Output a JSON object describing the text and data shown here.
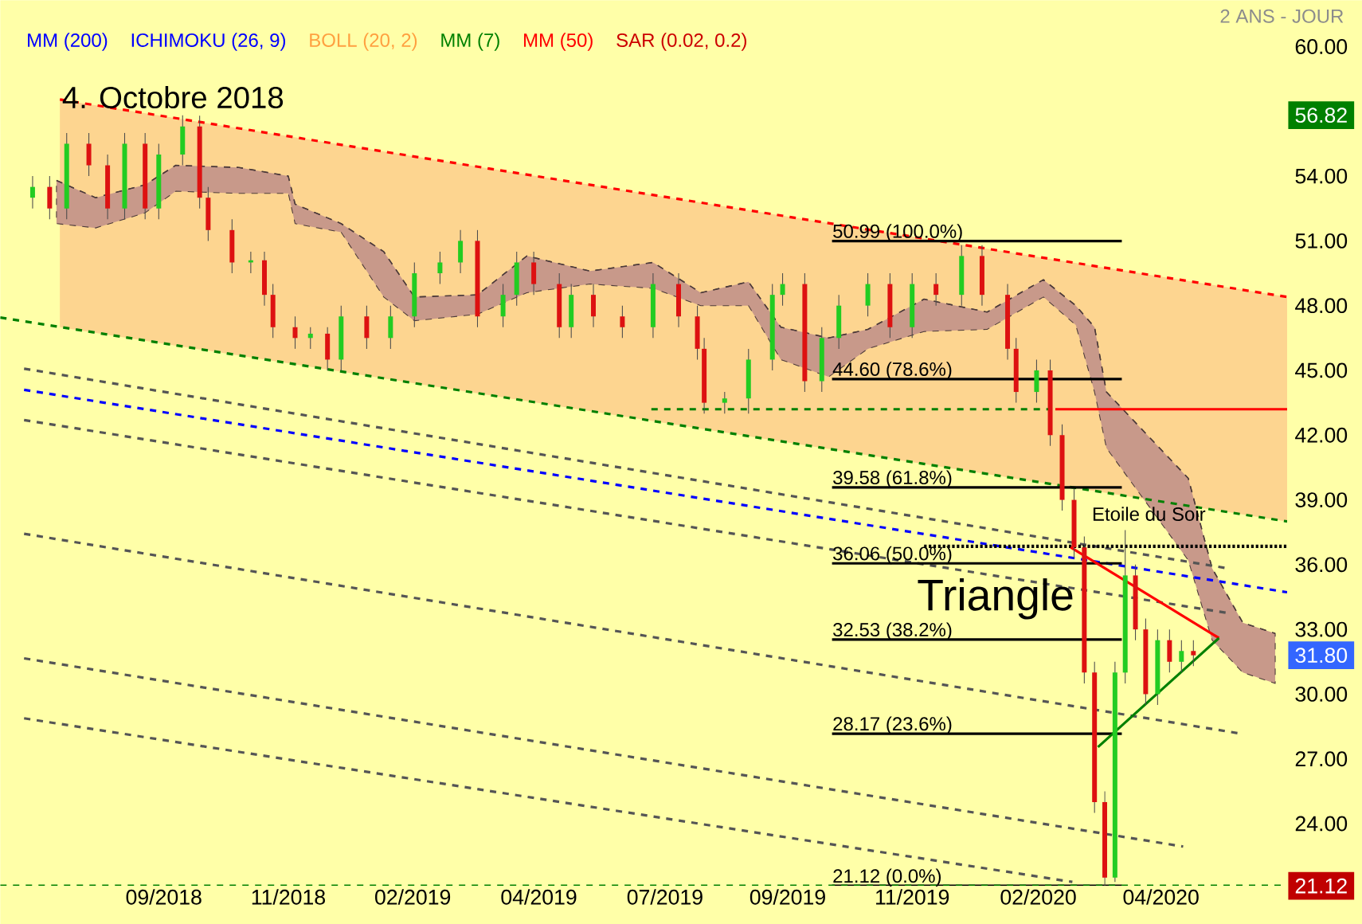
{
  "chart_data": {
    "type": "candlestick",
    "subtitle": "2 ANS - JOUR",
    "xlim": [
      "2018-06-06",
      "2020-06-30"
    ],
    "ylim": [
      21.12,
      62.15
    ],
    "xticks": [
      {
        "value": "2018-09-10",
        "label": "09/2018"
      },
      {
        "value": "2018-11-22",
        "label": "11/2018"
      },
      {
        "value": "2019-02-03",
        "label": "02/2019"
      },
      {
        "value": "2019-04-18",
        "label": "04/2019"
      },
      {
        "value": "2019-07-01",
        "label": "07/2019"
      },
      {
        "value": "2019-09-11",
        "label": "09/2019"
      },
      {
        "value": "2019-11-23",
        "label": "11/2019"
      },
      {
        "value": "2020-02-05",
        "label": "02/2020"
      },
      {
        "value": "2020-04-17",
        "label": "04/2020"
      }
    ],
    "yticks": [
      {
        "value": 24,
        "label": "24.00"
      },
      {
        "value": 27,
        "label": "27.00"
      },
      {
        "value": 30,
        "label": "30.00"
      },
      {
        "value": 33,
        "label": "33.00"
      },
      {
        "value": 36,
        "label": "36.00"
      },
      {
        "value": 39,
        "label": "39.00"
      },
      {
        "value": 42,
        "label": "42.00"
      },
      {
        "value": 45,
        "label": "45.00"
      },
      {
        "value": 48,
        "label": "48.00"
      },
      {
        "value": 51,
        "label": "51.00"
      },
      {
        "value": 54,
        "label": "54.00"
      },
      {
        "value": 60,
        "label": "60.00"
      },
      {
        "value": 56.82,
        "label": "56.82"
      },
      {
        "value": 31.8,
        "label": "31.80"
      },
      {
        "value": 21.12,
        "label": "21.12"
      }
    ],
    "x": [
      "2018-06-25",
      "2018-07-05",
      "2018-07-15",
      "2018-07-28",
      "2018-08-08",
      "2018-08-18",
      "2018-08-30",
      "2018-09-07",
      "2018-09-21",
      "2018-10-01",
      "2018-10-06",
      "2018-10-20",
      "2018-10-31",
      "2018-11-08",
      "2018-11-13",
      "2018-11-26",
      "2018-12-05",
      "2018-12-15",
      "2018-12-23",
      "2019-01-07",
      "2019-01-21",
      "2019-02-04",
      "2019-02-19",
      "2019-03-03",
      "2019-03-13",
      "2019-03-28",
      "2019-04-05",
      "2019-04-15",
      "2019-04-30",
      "2019-05-07",
      "2019-05-20",
      "2019-06-06",
      "2019-06-24",
      "2019-07-09",
      "2019-07-20",
      "2019-07-24",
      "2019-08-05",
      "2019-08-19",
      "2019-09-02",
      "2019-09-08",
      "2019-09-21",
      "2019-10-01",
      "2019-10-11",
      "2019-10-28",
      "2019-11-10",
      "2019-11-23",
      "2019-12-07",
      "2019-12-22",
      "2020-01-03",
      "2020-01-18",
      "2020-01-23",
      "2020-02-04",
      "2020-02-12",
      "2020-02-19",
      "2020-02-26",
      "2020-03-03",
      "2020-03-09",
      "2020-03-15",
      "2020-03-21",
      "2020-03-27",
      "2020-04-02",
      "2020-04-08",
      "2020-04-15",
      "2020-04-22",
      "2020-04-29",
      "2020-05-06"
    ],
    "ohlc": [
      [
        53.0,
        54.0,
        52.5,
        53.5
      ],
      [
        53.5,
        54.0,
        52.0,
        52.5
      ],
      [
        52.5,
        56.0,
        52.0,
        55.5
      ],
      [
        55.5,
        56.0,
        54.0,
        54.5
      ],
      [
        54.5,
        55.0,
        52.0,
        52.5
      ],
      [
        52.5,
        56.0,
        52.0,
        55.5
      ],
      [
        55.5,
        56.0,
        52.0,
        52.5
      ],
      [
        52.5,
        55.5,
        52.0,
        55.0
      ],
      [
        55.0,
        56.82,
        54.5,
        56.3
      ],
      [
        56.3,
        56.8,
        52.5,
        53.0
      ],
      [
        53.0,
        53.5,
        51.0,
        51.5
      ],
      [
        51.5,
        52.0,
        49.5,
        50.0
      ],
      [
        50.0,
        50.5,
        49.5,
        50.1
      ],
      [
        50.1,
        50.5,
        48.0,
        48.5
      ],
      [
        48.5,
        49.0,
        46.5,
        47.0
      ],
      [
        47.0,
        47.5,
        46.0,
        46.5
      ],
      [
        46.5,
        47.0,
        46.0,
        46.7
      ],
      [
        46.7,
        47.0,
        45.0,
        45.5
      ],
      [
        45.5,
        48.0,
        45.0,
        47.5
      ],
      [
        47.5,
        48.0,
        46.0,
        46.5
      ],
      [
        46.5,
        48.0,
        46.0,
        47.5
      ],
      [
        47.5,
        50.0,
        47.0,
        49.5
      ],
      [
        49.5,
        50.5,
        49.0,
        50.0
      ],
      [
        50.0,
        51.5,
        49.5,
        51.0
      ],
      [
        51.0,
        51.5,
        47.0,
        47.5
      ],
      [
        47.5,
        49.0,
        47.0,
        48.5
      ],
      [
        48.5,
        50.5,
        48.0,
        50.0
      ],
      [
        50.0,
        50.5,
        48.5,
        49.0
      ],
      [
        49.0,
        49.5,
        46.5,
        47.0
      ],
      [
        47.0,
        49.0,
        46.5,
        48.5
      ],
      [
        48.5,
        49.0,
        47.0,
        47.5
      ],
      [
        47.5,
        48.0,
        46.5,
        47.0
      ],
      [
        47.0,
        49.5,
        46.5,
        49.0
      ],
      [
        49.0,
        49.5,
        47.0,
        47.5
      ],
      [
        47.5,
        48.0,
        45.5,
        46.0
      ],
      [
        46.0,
        46.5,
        43.0,
        43.5
      ],
      [
        43.5,
        44.0,
        43.0,
        43.7
      ],
      [
        43.7,
        46.0,
        43.0,
        45.5
      ],
      [
        45.5,
        49.0,
        45.0,
        48.5
      ],
      [
        48.5,
        49.5,
        48.0,
        49.0
      ],
      [
        49.0,
        49.5,
        44.0,
        44.5
      ],
      [
        44.5,
        47.0,
        44.0,
        46.5
      ],
      [
        46.5,
        48.5,
        46.0,
        48.0
      ],
      [
        48.0,
        49.5,
        47.5,
        49.0
      ],
      [
        49.0,
        49.5,
        46.5,
        47.0
      ],
      [
        47.0,
        49.5,
        46.5,
        49.0
      ],
      [
        49.0,
        49.5,
        48.0,
        48.5
      ],
      [
        48.5,
        50.8,
        48.0,
        50.3
      ],
      [
        50.3,
        50.8,
        48.0,
        48.5
      ],
      [
        48.5,
        49.0,
        45.5,
        46.0
      ],
      [
        46.0,
        46.5,
        43.5,
        44.0
      ],
      [
        44.0,
        45.5,
        43.5,
        45.0
      ],
      [
        45.0,
        45.5,
        41.5,
        42.0
      ],
      [
        42.0,
        42.5,
        38.5,
        39.0
      ],
      [
        39.0,
        39.5,
        36.3,
        36.8
      ],
      [
        36.8,
        37.3,
        30.5,
        31.0
      ],
      [
        31.0,
        31.5,
        24.5,
        25.0
      ],
      [
        25.0,
        25.5,
        21.12,
        21.5
      ],
      [
        21.5,
        31.5,
        21.3,
        31.0
      ],
      [
        31.0,
        37.6,
        30.5,
        35.5
      ],
      [
        35.5,
        36.0,
        32.5,
        33.0
      ],
      [
        33.0,
        33.5,
        29.5,
        30.0
      ],
      [
        30.0,
        33.0,
        29.5,
        32.5
      ],
      [
        32.5,
        33.0,
        31.0,
        31.5
      ],
      [
        31.5,
        32.5,
        31.0,
        32.0
      ],
      [
        32.0,
        32.5,
        31.3,
        31.8
      ]
    ],
    "series": [
      {
        "type": "line",
        "color": "#ff0000",
        "line_style": "dashed",
        "x": [
          "2018-07-11",
          "2020-06-30"
        ],
        "values": [
          57.55,
          48.4
        ],
        "lower": [
          47.0,
          38.0
        ],
        "upper": [
          57.55,
          48.4
        ]
      },
      {
        "type": "line",
        "color": "#4c3a3a",
        "line_style": "dashed",
        "x": [
          "2018-07-09",
          "2018-08-01",
          "2018-08-30",
          "2018-09-17",
          "2018-10-24",
          "2018-11-22",
          "2018-11-26",
          "2018-12-23",
          "2019-01-17",
          "2019-02-04",
          "2019-03-13",
          "2019-04-11",
          "2019-05-18",
          "2019-06-24",
          "2019-07-22",
          "2019-08-19",
          "2019-09-07",
          "2019-10-05",
          "2019-10-28",
          "2019-11-30",
          "2020-01-06",
          "2020-02-08",
          "2020-02-27",
          "2020-03-09",
          "2020-03-16",
          "2020-05-03",
          "2020-05-17",
          "2020-06-04",
          "2020-06-23"
        ],
        "values": [
          53.8,
          53.0,
          53.6,
          54.5,
          54.4,
          54.0,
          52.7,
          51.8,
          50.5,
          48.4,
          48.5,
          50.3,
          49.6,
          50.0,
          48.6,
          49.1,
          47.0,
          46.5,
          46.9,
          48.3,
          47.7,
          49.2,
          48.0,
          47.0,
          44.0,
          40.0,
          35.83,
          33.31,
          32.81
        ],
        "upper": [
          53.8,
          53.0,
          53.6,
          54.5,
          54.4,
          54.0,
          52.7,
          51.8,
          50.5,
          48.4,
          48.5,
          50.3,
          49.6,
          50.0,
          48.6,
          49.1,
          47.0,
          46.5,
          46.9,
          48.3,
          47.7,
          49.2,
          48.0,
          47.0,
          44.0,
          40.0,
          35.83,
          33.31,
          32.81
        ],
        "lower": [
          51.8,
          51.6,
          52.3,
          53.3,
          53.2,
          53.2,
          51.8,
          51.4,
          48.4,
          47.3,
          47.6,
          48.6,
          49.0,
          48.8,
          48.0,
          48.0,
          45.5,
          44.7,
          46.0,
          46.8,
          46.9,
          48.4,
          47.1,
          44.0,
          41.4,
          36.2,
          32.5,
          31.0,
          30.5
        ]
      },
      {
        "type": "line",
        "color": "#008000",
        "line_style": "dashed",
        "x": [
          "2018-06-06",
          "2020-06-30"
        ],
        "values": [
          47.45,
          38.0
        ]
      },
      {
        "type": "line",
        "color": "#555555",
        "line_style": "dashed",
        "x": [
          "2018-06-20",
          "2020-05-26"
        ],
        "values": [
          45.08,
          35.83
        ]
      },
      {
        "type": "line",
        "color": "#0000ff",
        "line_style": "dashed",
        "x": [
          "2018-06-20",
          "2020-06-30"
        ],
        "values": [
          44.1,
          34.72
        ]
      },
      {
        "type": "line",
        "color": "#555555",
        "line_style": "dashed",
        "x": [
          "2018-06-20",
          "2020-05-26"
        ],
        "values": [
          42.7,
          33.76
        ]
      },
      {
        "type": "line",
        "color": "#555555",
        "line_style": "dashed",
        "x": [
          "2018-06-20",
          "2020-06-02"
        ],
        "values": [
          37.43,
          28.18
        ]
      },
      {
        "type": "line",
        "color": "#555555",
        "line_style": "dashed",
        "x": [
          "2018-06-20",
          "2020-04-30"
        ],
        "values": [
          31.66,
          22.94
        ]
      },
      {
        "type": "line",
        "color": "#555555",
        "line_style": "dashed",
        "x": [
          "2018-06-20",
          "2020-02-25"
        ],
        "values": [
          28.88,
          21.3
        ]
      },
      {
        "type": "line",
        "color": "#000000",
        "line_style": "solid",
        "x": [
          "2019-10-07",
          "2020-03-25"
        ],
        "values": [
          50.99,
          50.99
        ]
      },
      {
        "type": "line",
        "color": "#000000",
        "line_style": "solid",
        "x": [
          "2019-10-07",
          "2020-03-25"
        ],
        "values": [
          44.6,
          44.6
        ]
      },
      {
        "type": "line",
        "color": "#000000",
        "line_style": "solid",
        "x": [
          "2019-10-07",
          "2020-03-25"
        ],
        "values": [
          39.58,
          39.58
        ]
      },
      {
        "type": "line",
        "color": "#000000",
        "line_style": "solid",
        "x": [
          "2019-10-07",
          "2020-03-25"
        ],
        "values": [
          36.06,
          36.06
        ]
      },
      {
        "type": "line",
        "color": "#000000",
        "line_style": "solid",
        "x": [
          "2019-10-07",
          "2020-03-25"
        ],
        "values": [
          32.53,
          32.53
        ]
      },
      {
        "type": "line",
        "color": "#000000",
        "line_style": "solid",
        "x": [
          "2019-10-07",
          "2020-03-25"
        ],
        "values": [
          28.17,
          28.17
        ]
      },
      {
        "type": "line",
        "color": "#000000",
        "line_style": "solid",
        "x": [
          "2019-10-07",
          "2020-03-25"
        ],
        "values": [
          21.12,
          21.12
        ]
      },
      {
        "type": "line",
        "color": "#008000",
        "line_style": "dashed",
        "x": [
          "2019-06-23",
          "2020-02-12"
        ],
        "values": [
          43.2,
          43.2
        ]
      },
      {
        "type": "line",
        "color": "#ff0000",
        "line_style": "solid",
        "x": [
          "2020-02-15",
          "2020-06-30"
        ],
        "values": [
          43.2,
          43.2
        ]
      },
      {
        "type": "line",
        "color": "#000000",
        "line_style": "dotted",
        "x": [
          "2019-11-30",
          "2020-06-30"
        ],
        "values": [
          36.85,
          36.85
        ]
      },
      {
        "type": "line",
        "color": "#ff0000",
        "line_style": "solid",
        "x": [
          "2020-02-24",
          "2020-05-21"
        ],
        "values": [
          36.8,
          32.6
        ]
      },
      {
        "type": "line",
        "color": "#008000",
        "line_style": "solid",
        "x": [
          "2020-03-11",
          "2020-05-21"
        ],
        "values": [
          27.55,
          32.6
        ]
      }
    ],
    "ref_lines": [
      {
        "axis": "y",
        "value": 21.12,
        "color": "#008000",
        "line_style": "dashed"
      }
    ],
    "annotations": [
      "MM (200)",
      "ICHIMOKU (26, 9)",
      "BOLL (20, 2)",
      "MM (7)",
      "MM (50)",
      "SAR (0.02, 0.2)",
      {
        "text": "4. Octobre 2018",
        "x": "2018-07-12",
        "y": 57.0
      },
      "Triangle",
      "Etoile du Soir",
      {
        "text": "50.99  (100.0%)",
        "x": "2019-10-07",
        "y": 50.99
      },
      {
        "text": "44.60  (78.6%)",
        "x": "2019-10-07",
        "y": 44.6
      },
      {
        "text": "39.58  (61.8%)",
        "x": "2019-10-07",
        "y": 39.58
      },
      {
        "text": "36.06  (50.0%)",
        "x": "2019-10-07",
        "y": 36.06
      },
      {
        "text": "32.53  (38.2%)",
        "x": "2019-10-07",
        "y": 32.53
      },
      {
        "text": "28.17  (23.6%)",
        "x": "2019-10-07",
        "y": 28.17
      },
      {
        "text": "21.12  (0.0%)",
        "x": "2019-10-07",
        "y": 21.12
      }
    ]
  }
}
